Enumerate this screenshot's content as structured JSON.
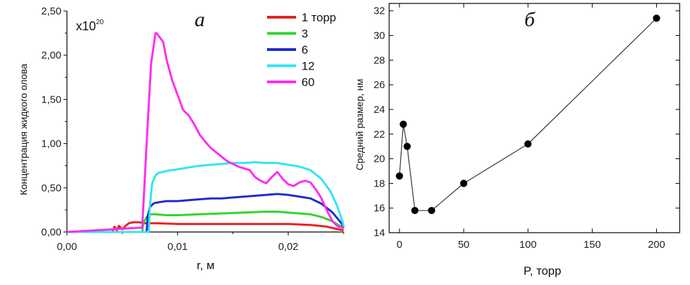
{
  "chart_data": [
    {
      "type": "line",
      "panel_label": "а",
      "xlabel": "r, м",
      "ylabel": "Концентрация жидкого олова",
      "multiplier": "x10",
      "multiplier_exp": "20",
      "xlim": [
        0,
        0.025
      ],
      "ylim": [
        0,
        2.5
      ],
      "x_ticks": [
        0,
        0.01,
        0.02
      ],
      "x_tick_labels": [
        "0,00",
        "0,01",
        "0,02"
      ],
      "y_ticks": [
        0,
        0.5,
        1.0,
        1.5,
        2.0,
        2.5
      ],
      "y_tick_labels": [
        "0,00",
        "0,50",
        "1,00",
        "1,50",
        "2,00",
        "2,50"
      ],
      "legend_position": "top-right",
      "series": [
        {
          "name": "1 торр",
          "color": "#e8201c",
          "x": [
            0,
            0.0041,
            0.0043,
            0.0045,
            0.0047,
            0.005,
            0.0053,
            0.0056,
            0.006,
            0.0065,
            0.007,
            0.008,
            0.01,
            0.012,
            0.014,
            0.016,
            0.018,
            0.02,
            0.022,
            0.0235,
            0.0245,
            0.025
          ],
          "y": [
            0,
            0,
            0.06,
            0.02,
            0.07,
            0.03,
            0.07,
            0.1,
            0.11,
            0.11,
            0.1,
            0.1,
            0.09,
            0.09,
            0.09,
            0.09,
            0.09,
            0.09,
            0.08,
            0.06,
            0.03,
            0.02
          ]
        },
        {
          "name": "3",
          "color": "#2bd62b",
          "x": [
            0,
            0.0068,
            0.0069,
            0.0072,
            0.0075,
            0.008,
            0.009,
            0.01,
            0.012,
            0.014,
            0.016,
            0.018,
            0.019,
            0.02,
            0.021,
            0.022,
            0.023,
            0.024,
            0.0248,
            0.025
          ],
          "y": [
            0,
            0,
            0.1,
            0.17,
            0.2,
            0.2,
            0.19,
            0.19,
            0.2,
            0.21,
            0.22,
            0.23,
            0.23,
            0.22,
            0.21,
            0.2,
            0.17,
            0.12,
            0.06,
            0.04
          ]
        },
        {
          "name": "6",
          "color": "#1a2bd0",
          "x": [
            0,
            0.0072,
            0.0073,
            0.0075,
            0.0078,
            0.008,
            0.0085,
            0.009,
            0.01,
            0.011,
            0.012,
            0.013,
            0.014,
            0.015,
            0.016,
            0.017,
            0.018,
            0.019,
            0.02,
            0.021,
            0.022,
            0.023,
            0.024,
            0.0248,
            0.025
          ],
          "y": [
            0,
            0,
            0.18,
            0.28,
            0.32,
            0.33,
            0.34,
            0.35,
            0.35,
            0.36,
            0.37,
            0.38,
            0.38,
            0.39,
            0.4,
            0.41,
            0.42,
            0.43,
            0.42,
            0.4,
            0.38,
            0.32,
            0.22,
            0.1,
            0.05
          ]
        },
        {
          "name": "12",
          "color": "#33e3f2",
          "x": [
            0,
            0.0074,
            0.0075,
            0.0077,
            0.008,
            0.0083,
            0.009,
            0.01,
            0.011,
            0.012,
            0.013,
            0.014,
            0.015,
            0.016,
            0.017,
            0.018,
            0.019,
            0.02,
            0.021,
            0.022,
            0.023,
            0.0238,
            0.0244,
            0.0249,
            0.025
          ],
          "y": [
            0,
            0,
            0.3,
            0.55,
            0.64,
            0.67,
            0.69,
            0.71,
            0.73,
            0.75,
            0.76,
            0.77,
            0.78,
            0.78,
            0.79,
            0.78,
            0.78,
            0.76,
            0.74,
            0.7,
            0.6,
            0.46,
            0.3,
            0.12,
            0.06
          ]
        },
        {
          "name": "60",
          "color": "#ff2cf0",
          "x": [
            0,
            0.0068,
            0.0072,
            0.0076,
            0.008,
            0.0081,
            0.0084,
            0.0087,
            0.009,
            0.0095,
            0.01,
            0.0105,
            0.011,
            0.0115,
            0.012,
            0.0125,
            0.013,
            0.0135,
            0.014,
            0.0145,
            0.015,
            0.0155,
            0.016,
            0.0165,
            0.017,
            0.0175,
            0.018,
            0.0185,
            0.019,
            0.0195,
            0.02,
            0.0205,
            0.021,
            0.0215,
            0.022,
            0.0225,
            0.023,
            0.0235,
            0.024,
            0.0245,
            0.025
          ],
          "y": [
            0,
            0.05,
            1.0,
            1.9,
            2.25,
            2.25,
            2.2,
            2.15,
            1.95,
            1.72,
            1.55,
            1.38,
            1.32,
            1.22,
            1.1,
            1.02,
            0.95,
            0.9,
            0.85,
            0.8,
            0.77,
            0.74,
            0.72,
            0.7,
            0.62,
            0.58,
            0.55,
            0.62,
            0.68,
            0.6,
            0.54,
            0.52,
            0.56,
            0.58,
            0.56,
            0.48,
            0.38,
            0.24,
            0.12,
            0.06,
            0.05
          ]
        }
      ]
    },
    {
      "type": "scatter",
      "panel_label": "б",
      "xlabel": "P, торр",
      "ylabel": "Средний размер, нм",
      "xlim": [
        -8,
        218
      ],
      "ylim": [
        14,
        32.6
      ],
      "x_ticks": [
        0,
        50,
        100,
        150,
        200
      ],
      "x_tick_labels": [
        "0",
        "50",
        "100",
        "150",
        "200"
      ],
      "y_ticks": [
        14,
        16,
        18,
        20,
        22,
        24,
        26,
        28,
        30,
        32
      ],
      "y_tick_labels": [
        "14",
        "16",
        "18",
        "20",
        "22",
        "24",
        "26",
        "28",
        "30",
        "32"
      ],
      "markers": true,
      "connected": true,
      "series": [
        {
          "x": [
            0,
            3,
            6,
            12,
            25,
            50,
            100,
            200
          ],
          "y": [
            18.6,
            22.8,
            21.0,
            15.8,
            15.8,
            18.0,
            21.2,
            31.4
          ]
        }
      ]
    }
  ]
}
